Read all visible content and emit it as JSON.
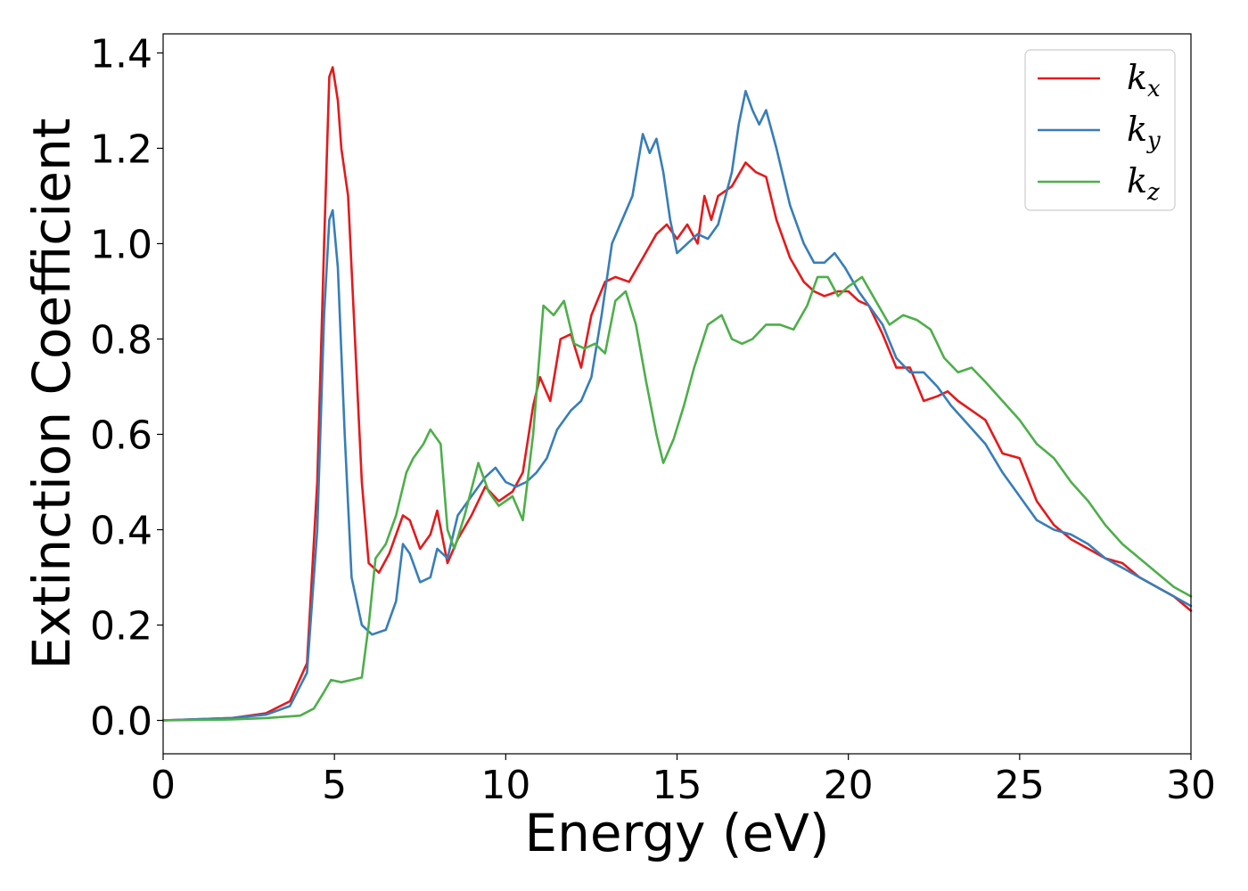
{
  "chart_data": {
    "type": "line",
    "xlabel": "Energy (eV)",
    "ylabel": "Extinction Coefficient",
    "xlim": [
      0,
      30
    ],
    "ylim": [
      -0.07,
      1.44
    ],
    "xticks": [
      0,
      5,
      10,
      15,
      20,
      25,
      30
    ],
    "xtick_labels": [
      "0",
      "5",
      "10",
      "15",
      "20",
      "25",
      "30"
    ],
    "yticks": [
      0.0,
      0.2,
      0.4,
      0.6,
      0.8,
      1.0,
      1.2,
      1.4
    ],
    "ytick_labels": [
      "0.0",
      "0.2",
      "0.4",
      "0.6",
      "0.8",
      "1.0",
      "1.2",
      "1.4"
    ],
    "grid": false,
    "legend_position": "top-right",
    "series": [
      {
        "name": "k_x",
        "label_base": "k",
        "label_sub": "x",
        "color": "#e41a1c",
        "points": [
          [
            0,
            0
          ],
          [
            2,
            0.005
          ],
          [
            3,
            0.015
          ],
          [
            3.7,
            0.04
          ],
          [
            4.2,
            0.12
          ],
          [
            4.5,
            0.5
          ],
          [
            4.7,
            1.0
          ],
          [
            4.85,
            1.35
          ],
          [
            4.95,
            1.37
          ],
          [
            5.1,
            1.3
          ],
          [
            5.2,
            1.2
          ],
          [
            5.4,
            1.1
          ],
          [
            5.6,
            0.8
          ],
          [
            5.8,
            0.5
          ],
          [
            6.0,
            0.33
          ],
          [
            6.3,
            0.31
          ],
          [
            6.6,
            0.35
          ],
          [
            7.0,
            0.43
          ],
          [
            7.2,
            0.42
          ],
          [
            7.5,
            0.36
          ],
          [
            7.8,
            0.39
          ],
          [
            8.0,
            0.44
          ],
          [
            8.3,
            0.33
          ],
          [
            8.6,
            0.38
          ],
          [
            9.0,
            0.43
          ],
          [
            9.4,
            0.49
          ],
          [
            9.8,
            0.46
          ],
          [
            10.2,
            0.48
          ],
          [
            10.5,
            0.52
          ],
          [
            10.8,
            0.66
          ],
          [
            11.0,
            0.72
          ],
          [
            11.3,
            0.67
          ],
          [
            11.6,
            0.8
          ],
          [
            11.9,
            0.81
          ],
          [
            12.2,
            0.74
          ],
          [
            12.5,
            0.85
          ],
          [
            12.9,
            0.92
          ],
          [
            13.2,
            0.93
          ],
          [
            13.6,
            0.92
          ],
          [
            14.0,
            0.97
          ],
          [
            14.4,
            1.02
          ],
          [
            14.7,
            1.04
          ],
          [
            15.0,
            1.01
          ],
          [
            15.3,
            1.04
          ],
          [
            15.6,
            1.0
          ],
          [
            15.8,
            1.1
          ],
          [
            16.0,
            1.05
          ],
          [
            16.2,
            1.1
          ],
          [
            16.6,
            1.12
          ],
          [
            17.0,
            1.17
          ],
          [
            17.3,
            1.15
          ],
          [
            17.6,
            1.14
          ],
          [
            17.9,
            1.05
          ],
          [
            18.3,
            0.97
          ],
          [
            18.7,
            0.92
          ],
          [
            19.0,
            0.9
          ],
          [
            19.3,
            0.89
          ],
          [
            19.7,
            0.9
          ],
          [
            20.0,
            0.9
          ],
          [
            20.3,
            0.88
          ],
          [
            20.6,
            0.87
          ],
          [
            21.0,
            0.81
          ],
          [
            21.4,
            0.74
          ],
          [
            21.8,
            0.74
          ],
          [
            22.2,
            0.67
          ],
          [
            22.6,
            0.68
          ],
          [
            22.9,
            0.69
          ],
          [
            23.2,
            0.67
          ],
          [
            23.6,
            0.65
          ],
          [
            24.0,
            0.63
          ],
          [
            24.5,
            0.56
          ],
          [
            25.0,
            0.55
          ],
          [
            25.5,
            0.46
          ],
          [
            26.0,
            0.41
          ],
          [
            26.5,
            0.38
          ],
          [
            27.0,
            0.36
          ],
          [
            27.5,
            0.34
          ],
          [
            28.0,
            0.33
          ],
          [
            28.5,
            0.3
          ],
          [
            29.0,
            0.28
          ],
          [
            29.5,
            0.26
          ],
          [
            30.0,
            0.23
          ]
        ]
      },
      {
        "name": "k_y",
        "label_base": "k",
        "label_sub": "y",
        "color": "#377eb8",
        "points": [
          [
            0,
            0
          ],
          [
            2,
            0.005
          ],
          [
            3,
            0.012
          ],
          [
            3.7,
            0.03
          ],
          [
            4.2,
            0.1
          ],
          [
            4.5,
            0.4
          ],
          [
            4.7,
            0.85
          ],
          [
            4.85,
            1.05
          ],
          [
            4.95,
            1.07
          ],
          [
            5.1,
            0.95
          ],
          [
            5.3,
            0.6
          ],
          [
            5.5,
            0.3
          ],
          [
            5.8,
            0.2
          ],
          [
            6.1,
            0.18
          ],
          [
            6.5,
            0.19
          ],
          [
            6.8,
            0.25
          ],
          [
            7.0,
            0.37
          ],
          [
            7.2,
            0.35
          ],
          [
            7.5,
            0.29
          ],
          [
            7.8,
            0.3
          ],
          [
            8.0,
            0.36
          ],
          [
            8.3,
            0.34
          ],
          [
            8.6,
            0.43
          ],
          [
            9.0,
            0.47
          ],
          [
            9.4,
            0.51
          ],
          [
            9.7,
            0.53
          ],
          [
            10.0,
            0.5
          ],
          [
            10.3,
            0.49
          ],
          [
            10.6,
            0.5
          ],
          [
            10.9,
            0.52
          ],
          [
            11.2,
            0.55
          ],
          [
            11.5,
            0.61
          ],
          [
            11.9,
            0.65
          ],
          [
            12.2,
            0.67
          ],
          [
            12.5,
            0.72
          ],
          [
            12.8,
            0.85
          ],
          [
            13.1,
            1.0
          ],
          [
            13.4,
            1.05
          ],
          [
            13.7,
            1.1
          ],
          [
            14.0,
            1.23
          ],
          [
            14.2,
            1.19
          ],
          [
            14.4,
            1.22
          ],
          [
            14.6,
            1.15
          ],
          [
            14.8,
            1.05
          ],
          [
            15.0,
            0.98
          ],
          [
            15.3,
            1.0
          ],
          [
            15.6,
            1.02
          ],
          [
            15.9,
            1.01
          ],
          [
            16.2,
            1.04
          ],
          [
            16.6,
            1.15
          ],
          [
            16.8,
            1.25
          ],
          [
            17.0,
            1.32
          ],
          [
            17.2,
            1.28
          ],
          [
            17.4,
            1.25
          ],
          [
            17.6,
            1.28
          ],
          [
            17.9,
            1.2
          ],
          [
            18.3,
            1.08
          ],
          [
            18.7,
            1.0
          ],
          [
            19.0,
            0.96
          ],
          [
            19.3,
            0.96
          ],
          [
            19.6,
            0.98
          ],
          [
            19.9,
            0.95
          ],
          [
            20.3,
            0.9
          ],
          [
            20.7,
            0.86
          ],
          [
            21.0,
            0.83
          ],
          [
            21.4,
            0.76
          ],
          [
            21.8,
            0.73
          ],
          [
            22.2,
            0.73
          ],
          [
            22.6,
            0.7
          ],
          [
            23.0,
            0.66
          ],
          [
            23.5,
            0.62
          ],
          [
            24.0,
            0.58
          ],
          [
            24.5,
            0.52
          ],
          [
            25.0,
            0.47
          ],
          [
            25.5,
            0.42
          ],
          [
            26.0,
            0.4
          ],
          [
            26.5,
            0.39
          ],
          [
            27.0,
            0.37
          ],
          [
            27.5,
            0.34
          ],
          [
            28.0,
            0.32
          ],
          [
            28.5,
            0.3
          ],
          [
            29.0,
            0.28
          ],
          [
            29.5,
            0.26
          ],
          [
            30.0,
            0.24
          ]
        ]
      },
      {
        "name": "k_z",
        "label_base": "k",
        "label_sub": "z",
        "color": "#4daf4a",
        "points": [
          [
            0,
            0
          ],
          [
            2,
            0.002
          ],
          [
            3,
            0.005
          ],
          [
            4,
            0.01
          ],
          [
            4.4,
            0.025
          ],
          [
            4.7,
            0.06
          ],
          [
            4.9,
            0.085
          ],
          [
            5.2,
            0.08
          ],
          [
            5.5,
            0.085
          ],
          [
            5.8,
            0.09
          ],
          [
            6.0,
            0.2
          ],
          [
            6.2,
            0.34
          ],
          [
            6.5,
            0.37
          ],
          [
            6.8,
            0.43
          ],
          [
            7.1,
            0.52
          ],
          [
            7.3,
            0.55
          ],
          [
            7.6,
            0.58
          ],
          [
            7.8,
            0.61
          ],
          [
            8.1,
            0.58
          ],
          [
            8.3,
            0.4
          ],
          [
            8.5,
            0.36
          ],
          [
            8.8,
            0.43
          ],
          [
            9.2,
            0.54
          ],
          [
            9.5,
            0.48
          ],
          [
            9.8,
            0.45
          ],
          [
            10.2,
            0.47
          ],
          [
            10.5,
            0.42
          ],
          [
            10.8,
            0.6
          ],
          [
            11.1,
            0.87
          ],
          [
            11.4,
            0.85
          ],
          [
            11.7,
            0.88
          ],
          [
            12.0,
            0.79
          ],
          [
            12.3,
            0.78
          ],
          [
            12.6,
            0.79
          ],
          [
            12.9,
            0.77
          ],
          [
            13.2,
            0.88
          ],
          [
            13.5,
            0.9
          ],
          [
            13.8,
            0.83
          ],
          [
            14.1,
            0.71
          ],
          [
            14.4,
            0.6
          ],
          [
            14.6,
            0.54
          ],
          [
            14.9,
            0.59
          ],
          [
            15.2,
            0.66
          ],
          [
            15.5,
            0.74
          ],
          [
            15.9,
            0.83
          ],
          [
            16.3,
            0.85
          ],
          [
            16.6,
            0.8
          ],
          [
            16.9,
            0.79
          ],
          [
            17.2,
            0.8
          ],
          [
            17.6,
            0.83
          ],
          [
            18.0,
            0.83
          ],
          [
            18.4,
            0.82
          ],
          [
            18.8,
            0.87
          ],
          [
            19.1,
            0.93
          ],
          [
            19.4,
            0.93
          ],
          [
            19.7,
            0.89
          ],
          [
            20.0,
            0.91
          ],
          [
            20.4,
            0.93
          ],
          [
            20.8,
            0.88
          ],
          [
            21.2,
            0.83
          ],
          [
            21.6,
            0.85
          ],
          [
            22.0,
            0.84
          ],
          [
            22.4,
            0.82
          ],
          [
            22.8,
            0.76
          ],
          [
            23.2,
            0.73
          ],
          [
            23.6,
            0.74
          ],
          [
            24.0,
            0.71
          ],
          [
            24.5,
            0.67
          ],
          [
            25.0,
            0.63
          ],
          [
            25.5,
            0.58
          ],
          [
            26.0,
            0.55
          ],
          [
            26.5,
            0.5
          ],
          [
            27.0,
            0.46
          ],
          [
            27.5,
            0.41
          ],
          [
            28.0,
            0.37
          ],
          [
            28.5,
            0.34
          ],
          [
            29.0,
            0.31
          ],
          [
            29.5,
            0.28
          ],
          [
            30.0,
            0.26
          ]
        ]
      }
    ]
  }
}
